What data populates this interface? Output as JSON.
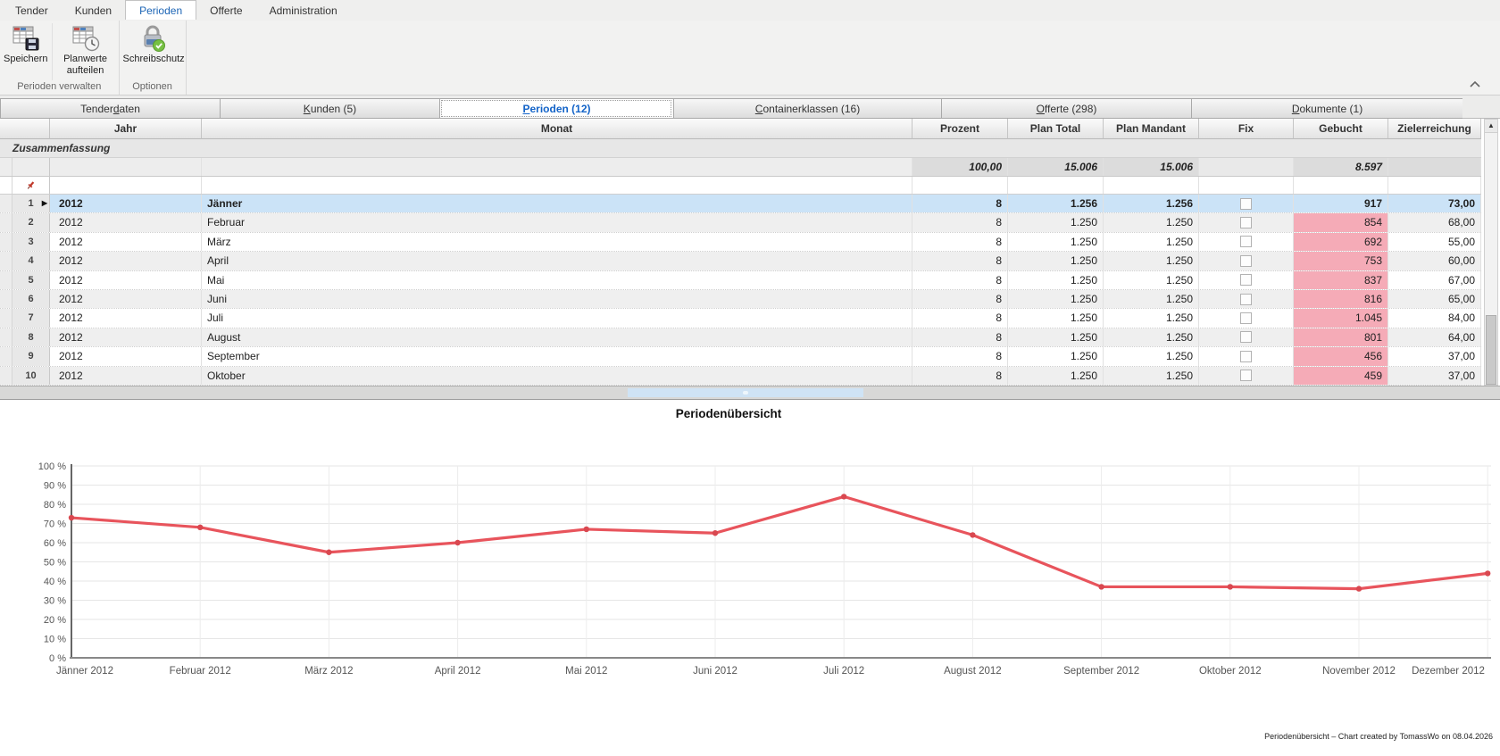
{
  "ribbon": {
    "tabs": [
      {
        "label": "Tender",
        "active": false
      },
      {
        "label": "Kunden",
        "active": false
      },
      {
        "label": "Perioden",
        "active": true
      },
      {
        "label": "Offerte",
        "active": false
      },
      {
        "label": "Administration",
        "active": false
      }
    ],
    "groups": [
      {
        "label": "Perioden verwalten",
        "buttons": [
          {
            "label": "Speichern",
            "icon": "table-save-icon"
          },
          {
            "label": "Planwerte aufteilen",
            "icon": "table-clock-icon"
          }
        ]
      },
      {
        "label": "Optionen",
        "buttons": [
          {
            "label": "Schreibschutz",
            "icon": "lock-check-icon"
          }
        ]
      }
    ]
  },
  "tabstrip": {
    "tabs": [
      {
        "label": "Tenderdaten",
        "accel_index": 6,
        "active": false
      },
      {
        "label": "Kunden (5)",
        "accel_index": 0,
        "active": false
      },
      {
        "label": "Perioden (12)",
        "accel_index": 0,
        "active": true
      },
      {
        "label": "Containerklassen (16)",
        "accel_index": 0,
        "active": false
      },
      {
        "label": "Offerte (298)",
        "accel_index": 0,
        "active": false
      },
      {
        "label": "Dokumente (1)",
        "accel_index": 0,
        "active": false
      }
    ]
  },
  "grid": {
    "columns": [
      "Jahr",
      "Monat",
      "Prozent",
      "Plan Total",
      "Plan Mandant",
      "Fix",
      "Gebucht",
      "Zielerreichung"
    ],
    "summary_band_label": "Zusammenfassung",
    "summary": {
      "prozent": "100,00",
      "plan_total": "15.006",
      "plan_mandant": "15.006",
      "gebucht": "8.597"
    },
    "rows": [
      {
        "num": "1",
        "jahr": "2012",
        "monat": "Jänner",
        "prozent": "8",
        "plan_total": "1.256",
        "plan_mandant": "1.256",
        "fix": false,
        "gebucht": "917",
        "ziel": "73,00",
        "selected": true
      },
      {
        "num": "2",
        "jahr": "2012",
        "monat": "Februar",
        "prozent": "8",
        "plan_total": "1.250",
        "plan_mandant": "1.250",
        "fix": false,
        "gebucht": "854",
        "ziel": "68,00",
        "selected": false
      },
      {
        "num": "3",
        "jahr": "2012",
        "monat": "März",
        "prozent": "8",
        "plan_total": "1.250",
        "plan_mandant": "1.250",
        "fix": false,
        "gebucht": "692",
        "ziel": "55,00",
        "selected": false
      },
      {
        "num": "4",
        "jahr": "2012",
        "monat": "April",
        "prozent": "8",
        "plan_total": "1.250",
        "plan_mandant": "1.250",
        "fix": false,
        "gebucht": "753",
        "ziel": "60,00",
        "selected": false
      },
      {
        "num": "5",
        "jahr": "2012",
        "monat": "Mai",
        "prozent": "8",
        "plan_total": "1.250",
        "plan_mandant": "1.250",
        "fix": false,
        "gebucht": "837",
        "ziel": "67,00",
        "selected": false
      },
      {
        "num": "6",
        "jahr": "2012",
        "monat": "Juni",
        "prozent": "8",
        "plan_total": "1.250",
        "plan_mandant": "1.250",
        "fix": false,
        "gebucht": "816",
        "ziel": "65,00",
        "selected": false
      },
      {
        "num": "7",
        "jahr": "2012",
        "monat": "Juli",
        "prozent": "8",
        "plan_total": "1.250",
        "plan_mandant": "1.250",
        "fix": false,
        "gebucht": "1.045",
        "ziel": "84,00",
        "selected": false
      },
      {
        "num": "8",
        "jahr": "2012",
        "monat": "August",
        "prozent": "8",
        "plan_total": "1.250",
        "plan_mandant": "1.250",
        "fix": false,
        "gebucht": "801",
        "ziel": "64,00",
        "selected": false
      },
      {
        "num": "9",
        "jahr": "2012",
        "monat": "September",
        "prozent": "8",
        "plan_total": "1.250",
        "plan_mandant": "1.250",
        "fix": false,
        "gebucht": "456",
        "ziel": "37,00",
        "selected": false
      },
      {
        "num": "10",
        "jahr": "2012",
        "monat": "Oktober",
        "prozent": "8",
        "plan_total": "1.250",
        "plan_mandant": "1.250",
        "fix": false,
        "gebucht": "459",
        "ziel": "37,00",
        "selected": false
      }
    ]
  },
  "chart_data": {
    "type": "line",
    "title": "Periodenübersicht",
    "categories": [
      "Jänner 2012",
      "Februar 2012",
      "März 2012",
      "April 2012",
      "Mai 2012",
      "Juni 2012",
      "Juli 2012",
      "August 2012",
      "September 2012",
      "Oktober 2012",
      "November 2012",
      "Dezember 2012"
    ],
    "values": [
      73,
      68,
      55,
      60,
      67,
      65,
      84,
      64,
      37,
      37,
      36,
      44
    ],
    "unit": "%",
    "ylim": [
      0,
      100
    ],
    "ytick_labels": [
      "0 %",
      "10 %",
      "20 %",
      "30 %",
      "40 %",
      "50 %",
      "60 %",
      "70 %",
      "80 %",
      "90 %",
      "100 %"
    ],
    "grid": true,
    "legend": "none",
    "credit": "Periodenübersicht – Chart created by TomassWo on 08.04.2026"
  },
  "colors": {
    "active_tab_blue": "#1464c8",
    "selected_row": "#cbe3f7",
    "gebucht_warning_pink": "#f5abb7",
    "chart_line": "#e8545c",
    "chart_marker": "#d94850"
  }
}
